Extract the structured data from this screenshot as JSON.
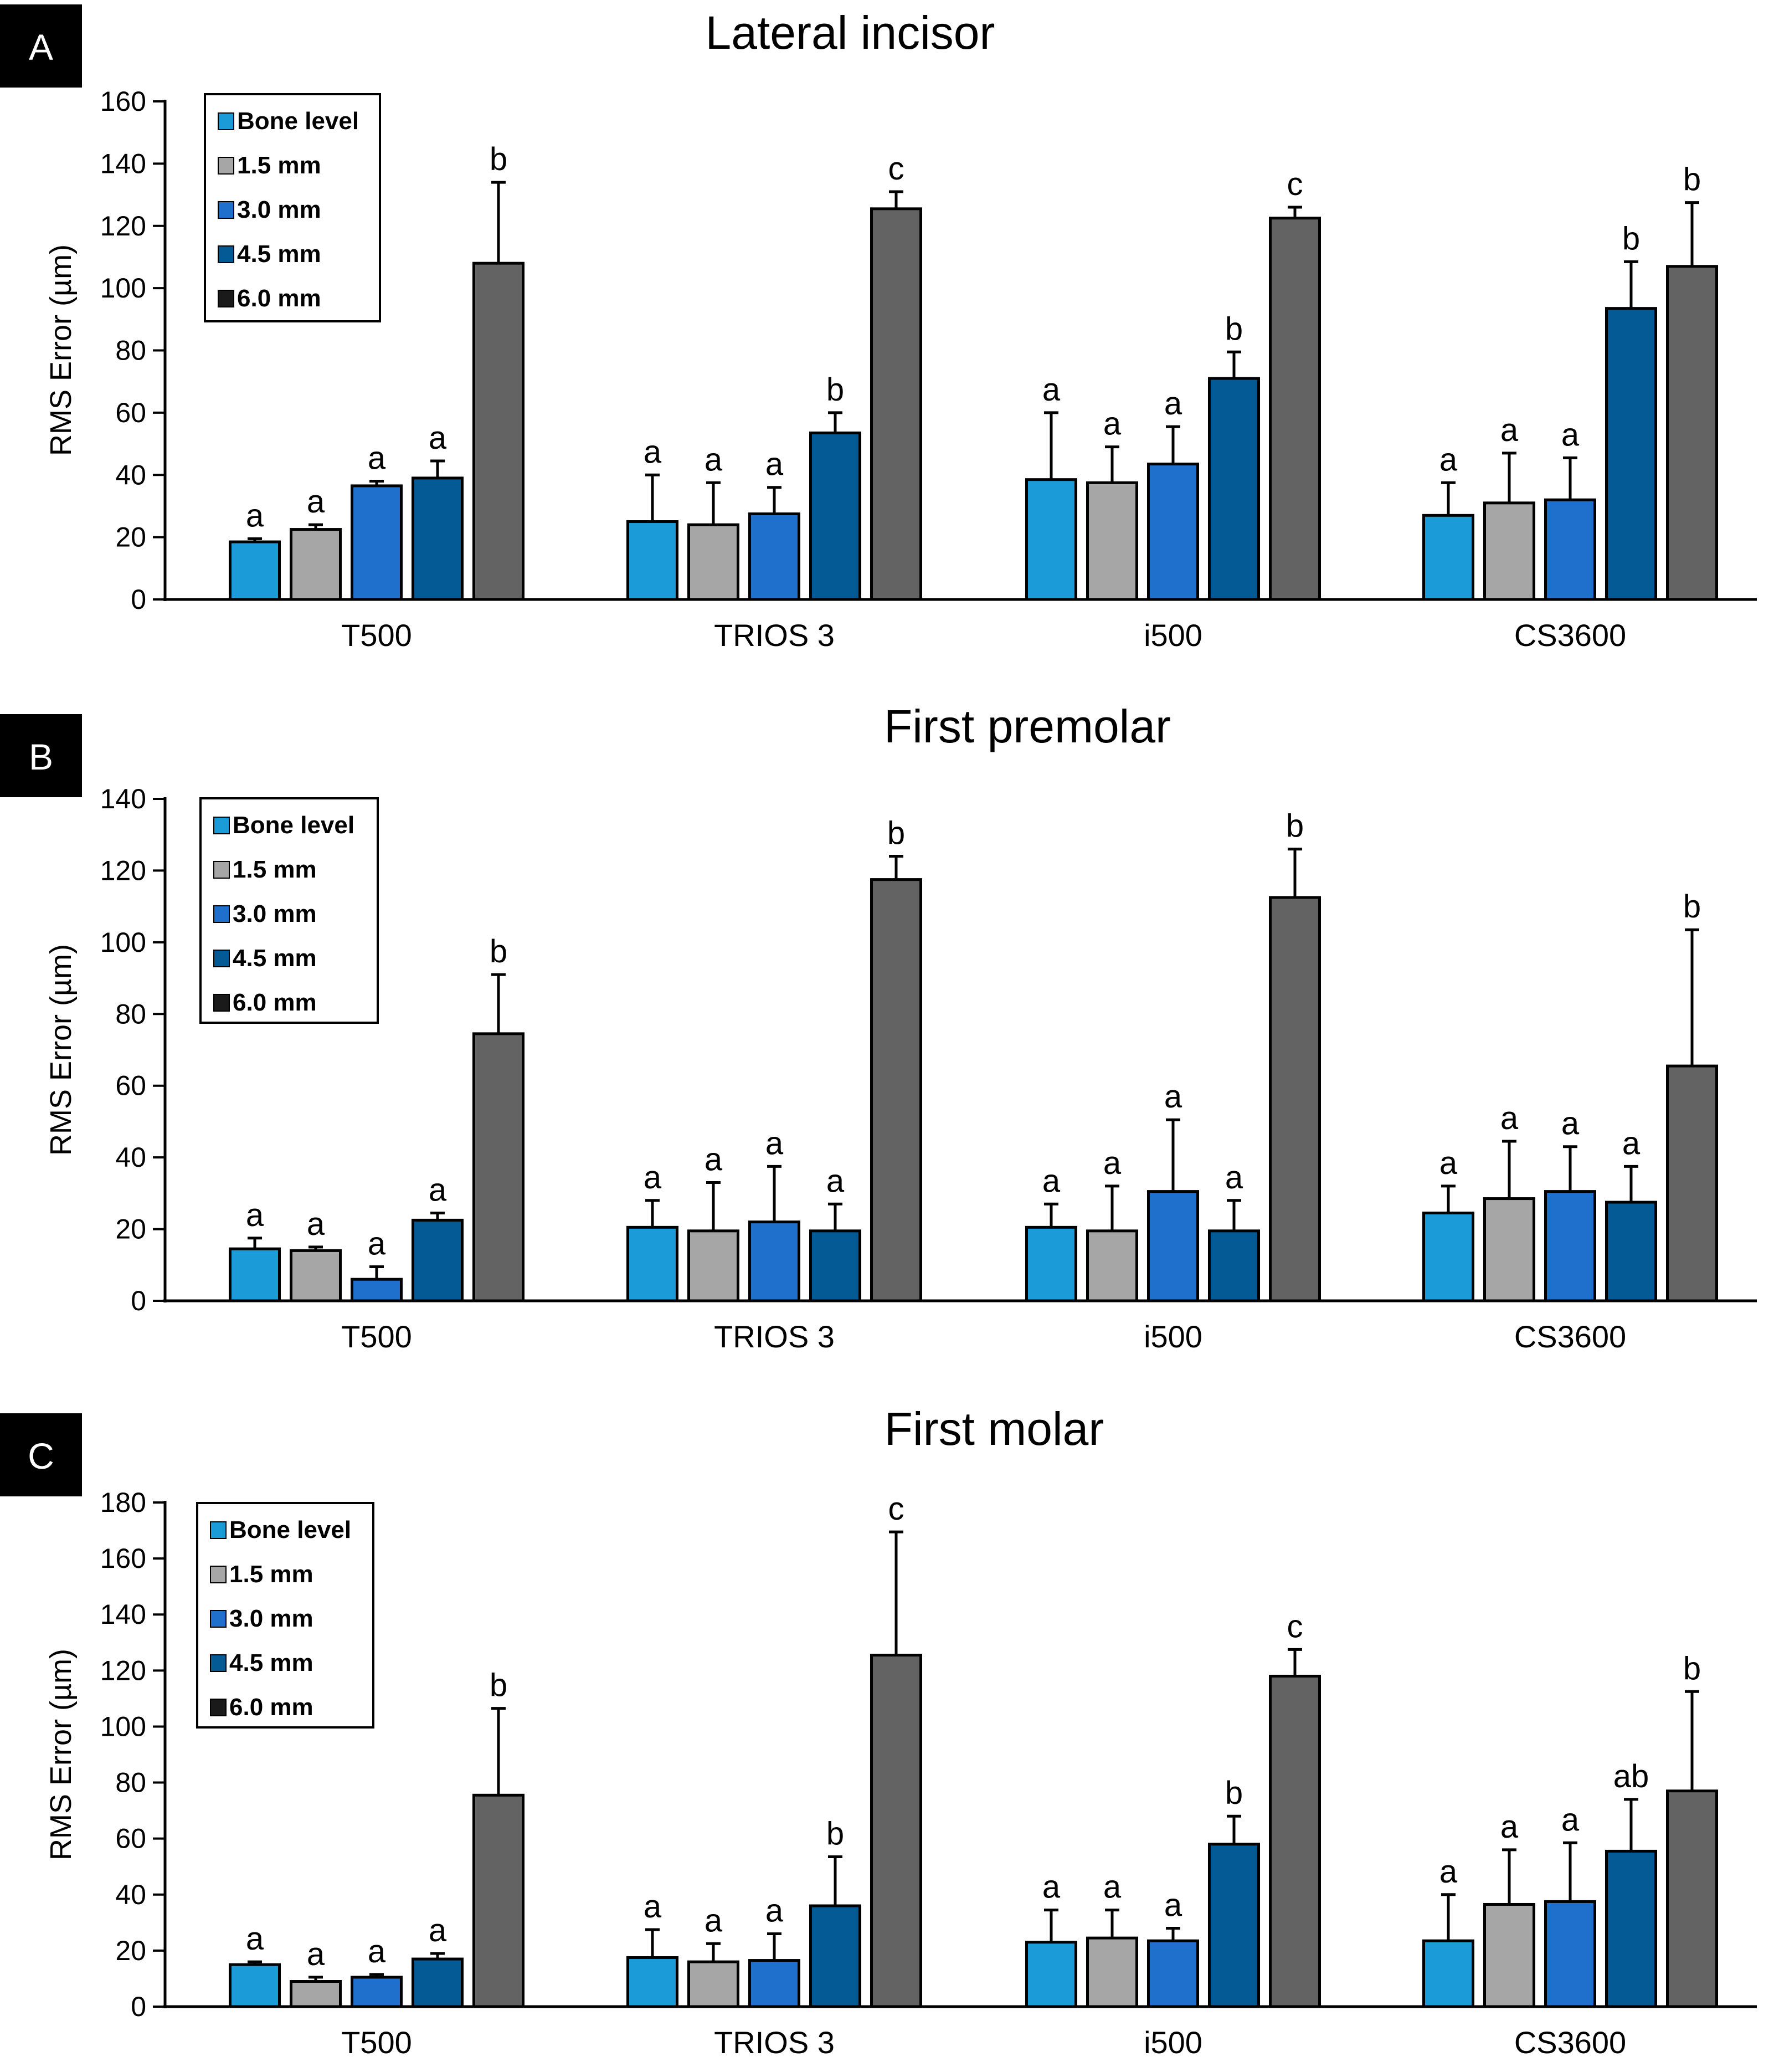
{
  "figure_type": "grouped bar chart with error bars",
  "colors": {
    "Bone level": "#1b9bd8",
    "1.5 mm": "#a6a6a6",
    "3.0 mm": "#1f70cc",
    "4.5 mm": "#035a94",
    "6.0 mm": "#636363"
  },
  "legend_swatch_colors": {
    "Bone level": "#1b9bd8",
    "1.5 mm": "#a6a6a6",
    "3.0 mm": "#1f70cc",
    "4.5 mm": "#035a94",
    "6.0 mm": "#1a1a1a"
  },
  "chart_data": [
    {
      "panel": "A",
      "type": "bar",
      "title": "Lateral incisor",
      "xlabel": "",
      "ylabel": "RMS Error (µm)",
      "ylim": [
        0,
        160
      ],
      "yticks": [
        0,
        20,
        40,
        60,
        80,
        100,
        120,
        140,
        160
      ],
      "grid": false,
      "legend_position": "top-left",
      "categories": [
        "T500",
        "TRIOS 3",
        "i500",
        "CS3600"
      ],
      "series": [
        {
          "name": "Bone level",
          "values": [
            18.5,
            25,
            38.5,
            27
          ],
          "errors": [
            1,
            15,
            21.5,
            10.5
          ],
          "letters": [
            "a",
            "a",
            "a",
            "a"
          ]
        },
        {
          "name": "1.5 mm",
          "values": [
            22.5,
            24,
            37.5,
            31
          ],
          "errors": [
            1.5,
            13.5,
            11.5,
            16
          ],
          "letters": [
            "a",
            "a",
            "a",
            "a"
          ]
        },
        {
          "name": "3.0 mm",
          "values": [
            36.5,
            27.5,
            43.5,
            32
          ],
          "errors": [
            1.5,
            8.5,
            12,
            13.5
          ],
          "letters": [
            "a",
            "a",
            "a",
            "a"
          ]
        },
        {
          "name": "4.5 mm",
          "values": [
            39,
            53.5,
            71,
            93.5
          ],
          "errors": [
            5.5,
            6.5,
            8.5,
            15
          ],
          "letters": [
            "a",
            "b",
            "b",
            "b"
          ]
        },
        {
          "name": "6.0 mm",
          "values": [
            108,
            125.5,
            122.5,
            107
          ],
          "errors": [
            26,
            5.5,
            3.5,
            20.5
          ],
          "letters": [
            "b",
            "c",
            "c",
            "b"
          ]
        }
      ]
    },
    {
      "panel": "B",
      "type": "bar",
      "title": "First premolar",
      "xlabel": "",
      "ylabel": "RMS Error (µm)",
      "ylim": [
        0,
        140
      ],
      "yticks": [
        0,
        20,
        40,
        60,
        80,
        100,
        120,
        140
      ],
      "grid": false,
      "legend_position": "top-left",
      "categories": [
        "T500",
        "TRIOS 3",
        "i500",
        "CS3600"
      ],
      "series": [
        {
          "name": "Bone level",
          "values": [
            14.5,
            20.5,
            20.5,
            24.5
          ],
          "errors": [
            3,
            7.5,
            6.5,
            7.5
          ],
          "letters": [
            "a",
            "a",
            "a",
            "a"
          ]
        },
        {
          "name": "1.5 mm",
          "values": [
            14,
            19.5,
            19.5,
            28.5
          ],
          "errors": [
            1,
            13.5,
            12.5,
            16
          ],
          "letters": [
            "a",
            "a",
            "a",
            "a"
          ]
        },
        {
          "name": "3.0 mm",
          "values": [
            6,
            22,
            30.5,
            30.5
          ],
          "errors": [
            3.5,
            15.5,
            20,
            12.5
          ],
          "letters": [
            "a",
            "a",
            "a",
            "a"
          ]
        },
        {
          "name": "4.5 mm",
          "values": [
            22.5,
            19.5,
            19.5,
            27.5
          ],
          "errors": [
            2,
            7.5,
            8.5,
            10
          ],
          "letters": [
            "a",
            "a",
            "a",
            "a"
          ]
        },
        {
          "name": "6.0 mm",
          "values": [
            74.5,
            117.5,
            112.5,
            65.5
          ],
          "errors": [
            16.5,
            6.5,
            13.5,
            38
          ],
          "letters": [
            "b",
            "b",
            "b",
            "b"
          ]
        }
      ]
    },
    {
      "panel": "C",
      "type": "bar",
      "title": "First molar",
      "xlabel": "",
      "ylabel": "RMS Error (µm)",
      "ylim": [
        0,
        180
      ],
      "yticks": [
        0,
        20,
        40,
        60,
        80,
        100,
        120,
        140,
        160,
        180
      ],
      "grid": false,
      "legend_position": "top-left",
      "categories": [
        "T500",
        "TRIOS 3",
        "i500",
        "CS3600"
      ],
      "series": [
        {
          "name": "Bone level",
          "values": [
            15,
            17.5,
            23,
            23.5
          ],
          "errors": [
            1,
            10,
            11.5,
            16.5
          ],
          "letters": [
            "a",
            "a",
            "a",
            "a"
          ]
        },
        {
          "name": "1.5 mm",
          "values": [
            9,
            16,
            24.5,
            36.5
          ],
          "errors": [
            1.5,
            6.5,
            10,
            19.5
          ],
          "letters": [
            "a",
            "a",
            "a",
            "a"
          ]
        },
        {
          "name": "3.0 mm",
          "values": [
            10.5,
            16.5,
            23.5,
            37.5
          ],
          "errors": [
            1,
            9.5,
            4.5,
            21
          ],
          "letters": [
            "a",
            "a",
            "a",
            "a"
          ]
        },
        {
          "name": "4.5 mm",
          "values": [
            17,
            36,
            58,
            55.5
          ],
          "errors": [
            2,
            17.5,
            10,
            18.5
          ],
          "letters": [
            "a",
            "b",
            "b",
            "ab"
          ]
        },
        {
          "name": "6.0 mm",
          "values": [
            75.5,
            125.5,
            118,
            77
          ],
          "errors": [
            31,
            44,
            9.5,
            35.5
          ],
          "letters": [
            "b",
            "c",
            "c",
            "b"
          ]
        }
      ]
    }
  ]
}
